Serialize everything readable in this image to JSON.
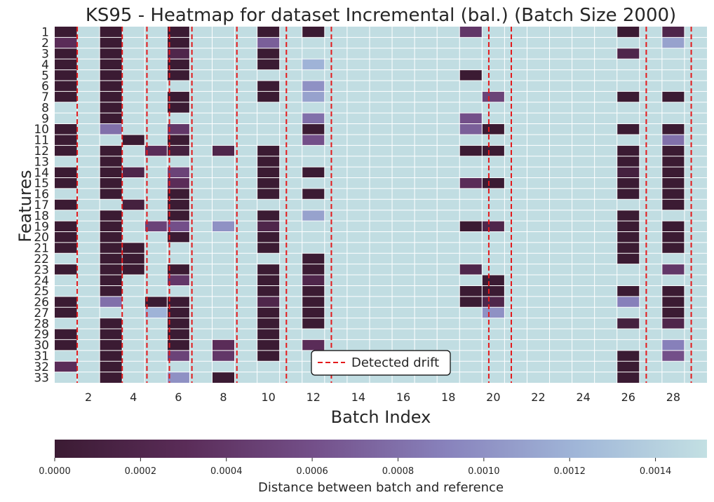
{
  "chart_data": {
    "type": "heatmap",
    "title": "KS95 - Heatmap for dataset Incremental (bal.) (Batch Size 2000)",
    "xlabel": "Batch Index",
    "ylabel": "Features",
    "x_ticks": [
      "2",
      "4",
      "6",
      "8",
      "10",
      "12",
      "14",
      "16",
      "18",
      "20",
      "22",
      "24",
      "26",
      "28"
    ],
    "y_categories": [
      "1",
      "2",
      "3",
      "4",
      "5",
      "6",
      "7",
      "8",
      "9",
      "10",
      "11",
      "12",
      "13",
      "14",
      "15",
      "16",
      "17",
      "18",
      "19",
      "20",
      "21",
      "22",
      "23",
      "24",
      "25",
      "26",
      "27",
      "28",
      "29",
      "30",
      "31",
      "32",
      "33"
    ],
    "batches": [
      1,
      2,
      3,
      4,
      5,
      6,
      7,
      8,
      9,
      10,
      11,
      12,
      13,
      14,
      15,
      16,
      17,
      18,
      19,
      20,
      21,
      22,
      23,
      24,
      25,
      26,
      27,
      28,
      29
    ],
    "colorbar": {
      "label": "Distance between batch and reference",
      "min": 0.0,
      "max": 0.00152,
      "ticks": [
        "0.0000",
        "0.0002",
        "0.0004",
        "0.0006",
        "0.0008",
        "0.0010",
        "0.0012",
        "0.0014"
      ],
      "colors": [
        "#3b1b33",
        "#5a2c58",
        "#74508a",
        "#8882bc",
        "#a0b6d8",
        "#c3e0e3"
      ]
    },
    "legend": {
      "label": "Detected drift",
      "placement": "lower-center",
      "line_color": "#e41a1c"
    },
    "drift_positions": [
      1.5,
      3.5,
      4.6,
      5.6,
      6.6,
      8.6,
      10.8,
      12.8,
      19.8,
      20.8,
      26.8,
      28.8
    ],
    "default_value": 0.0015,
    "values": [
      {
        "f": 1,
        "b": 1,
        "v": 0
      },
      {
        "f": 1,
        "b": 3,
        "v": 0
      },
      {
        "f": 1,
        "b": 6,
        "v": 0
      },
      {
        "f": 1,
        "b": 10,
        "v": 0
      },
      {
        "f": 1,
        "b": 12,
        "v": 0
      },
      {
        "f": 1,
        "b": 19,
        "v": 0.0004
      },
      {
        "f": 1,
        "b": 26,
        "v": 0
      },
      {
        "f": 1,
        "b": 28,
        "v": 0.0002
      },
      {
        "f": 2,
        "b": 1,
        "v": 0.0003
      },
      {
        "f": 2,
        "b": 3,
        "v": 0
      },
      {
        "f": 2,
        "b": 6,
        "v": 0
      },
      {
        "f": 2,
        "b": 10,
        "v": 0.0007
      },
      {
        "f": 2,
        "b": 28,
        "v": 0.0011
      },
      {
        "f": 3,
        "b": 1,
        "v": 0
      },
      {
        "f": 3,
        "b": 3,
        "v": 0
      },
      {
        "f": 3,
        "b": 6,
        "v": 0.0002
      },
      {
        "f": 3,
        "b": 10,
        "v": 0
      },
      {
        "f": 3,
        "b": 26,
        "v": 0.0002
      },
      {
        "f": 4,
        "b": 1,
        "v": 0
      },
      {
        "f": 4,
        "b": 3,
        "v": 0
      },
      {
        "f": 4,
        "b": 6,
        "v": 0
      },
      {
        "f": 4,
        "b": 10,
        "v": 0
      },
      {
        "f": 4,
        "b": 12,
        "v": 0.0012
      },
      {
        "f": 5,
        "b": 1,
        "v": 0
      },
      {
        "f": 5,
        "b": 3,
        "v": 0
      },
      {
        "f": 5,
        "b": 6,
        "v": 0
      },
      {
        "f": 5,
        "b": 19,
        "v": 0
      },
      {
        "f": 6,
        "b": 1,
        "v": 0
      },
      {
        "f": 6,
        "b": 3,
        "v": 0
      },
      {
        "f": 6,
        "b": 10,
        "v": 0
      },
      {
        "f": 6,
        "b": 12,
        "v": 0.001
      },
      {
        "f": 7,
        "b": 1,
        "v": 0
      },
      {
        "f": 7,
        "b": 3,
        "v": 0
      },
      {
        "f": 7,
        "b": 6,
        "v": 0
      },
      {
        "f": 7,
        "b": 10,
        "v": 0
      },
      {
        "f": 7,
        "b": 12,
        "v": 0.0011
      },
      {
        "f": 7,
        "b": 20,
        "v": 0.0005
      },
      {
        "f": 7,
        "b": 26,
        "v": 0
      },
      {
        "f": 7,
        "b": 28,
        "v": 0
      },
      {
        "f": 8,
        "b": 3,
        "v": 0
      },
      {
        "f": 8,
        "b": 6,
        "v": 0
      },
      {
        "f": 9,
        "b": 3,
        "v": 0
      },
      {
        "f": 9,
        "b": 12,
        "v": 0.0008
      },
      {
        "f": 9,
        "b": 19,
        "v": 0.0006
      },
      {
        "f": 10,
        "b": 1,
        "v": 0
      },
      {
        "f": 10,
        "b": 3,
        "v": 0.0008
      },
      {
        "f": 10,
        "b": 6,
        "v": 0.0004
      },
      {
        "f": 10,
        "b": 12,
        "v": 0
      },
      {
        "f": 10,
        "b": 19,
        "v": 0.0007
      },
      {
        "f": 10,
        "b": 20,
        "v": 0
      },
      {
        "f": 10,
        "b": 26,
        "v": 0
      },
      {
        "f": 10,
        "b": 28,
        "v": 0
      },
      {
        "f": 11,
        "b": 1,
        "v": 0
      },
      {
        "f": 11,
        "b": 4,
        "v": 0
      },
      {
        "f": 11,
        "b": 6,
        "v": 0
      },
      {
        "f": 11,
        "b": 12,
        "v": 0.0006
      },
      {
        "f": 11,
        "b": 28,
        "v": 0.0008
      },
      {
        "f": 12,
        "b": 1,
        "v": 0
      },
      {
        "f": 12,
        "b": 3,
        "v": 0
      },
      {
        "f": 12,
        "b": 5,
        "v": 0.0003
      },
      {
        "f": 12,
        "b": 6,
        "v": 0.0001
      },
      {
        "f": 12,
        "b": 8,
        "v": 0.0002
      },
      {
        "f": 12,
        "b": 10,
        "v": 0
      },
      {
        "f": 12,
        "b": 19,
        "v": 0
      },
      {
        "f": 12,
        "b": 20,
        "v": 0
      },
      {
        "f": 12,
        "b": 26,
        "v": 0
      },
      {
        "f": 12,
        "b": 28,
        "v": 0
      },
      {
        "f": 13,
        "b": 3,
        "v": 0
      },
      {
        "f": 13,
        "b": 10,
        "v": 0
      },
      {
        "f": 13,
        "b": 26,
        "v": 0
      },
      {
        "f": 13,
        "b": 28,
        "v": 0
      },
      {
        "f": 14,
        "b": 1,
        "v": 0
      },
      {
        "f": 14,
        "b": 3,
        "v": 0
      },
      {
        "f": 14,
        "b": 4,
        "v": 0.0002
      },
      {
        "f": 14,
        "b": 6,
        "v": 0.0005
      },
      {
        "f": 14,
        "b": 10,
        "v": 0
      },
      {
        "f": 14,
        "b": 12,
        "v": 0
      },
      {
        "f": 14,
        "b": 26,
        "v": 0.0001
      },
      {
        "f": 14,
        "b": 28,
        "v": 0
      },
      {
        "f": 15,
        "b": 1,
        "v": 0
      },
      {
        "f": 15,
        "b": 3,
        "v": 0
      },
      {
        "f": 15,
        "b": 6,
        "v": 0.0003
      },
      {
        "f": 15,
        "b": 10,
        "v": 0
      },
      {
        "f": 15,
        "b": 19,
        "v": 0.0003
      },
      {
        "f": 15,
        "b": 20,
        "v": 0
      },
      {
        "f": 15,
        "b": 26,
        "v": 0
      },
      {
        "f": 15,
        "b": 28,
        "v": 0
      },
      {
        "f": 16,
        "b": 3,
        "v": 0
      },
      {
        "f": 16,
        "b": 6,
        "v": 0
      },
      {
        "f": 16,
        "b": 10,
        "v": 0
      },
      {
        "f": 16,
        "b": 12,
        "v": 0
      },
      {
        "f": 16,
        "b": 26,
        "v": 0
      },
      {
        "f": 16,
        "b": 28,
        "v": 0
      },
      {
        "f": 17,
        "b": 1,
        "v": 0
      },
      {
        "f": 17,
        "b": 4,
        "v": 0.0001
      },
      {
        "f": 17,
        "b": 6,
        "v": 0
      },
      {
        "f": 17,
        "b": 28,
        "v": 0
      },
      {
        "f": 18,
        "b": 3,
        "v": 0
      },
      {
        "f": 18,
        "b": 6,
        "v": 0
      },
      {
        "f": 18,
        "b": 10,
        "v": 0
      },
      {
        "f": 18,
        "b": 12,
        "v": 0.0011
      },
      {
        "f": 18,
        "b": 26,
        "v": 0
      },
      {
        "f": 19,
        "b": 1,
        "v": 0
      },
      {
        "f": 19,
        "b": 3,
        "v": 0
      },
      {
        "f": 19,
        "b": 5,
        "v": 0.0005
      },
      {
        "f": 19,
        "b": 6,
        "v": 0.0006
      },
      {
        "f": 19,
        "b": 8,
        "v": 0.001
      },
      {
        "f": 19,
        "b": 10,
        "v": 0.0002
      },
      {
        "f": 19,
        "b": 19,
        "v": 0
      },
      {
        "f": 19,
        "b": 20,
        "v": 0.0002
      },
      {
        "f": 19,
        "b": 26,
        "v": 0
      },
      {
        "f": 19,
        "b": 28,
        "v": 0
      },
      {
        "f": 20,
        "b": 1,
        "v": 0
      },
      {
        "f": 20,
        "b": 3,
        "v": 0
      },
      {
        "f": 20,
        "b": 6,
        "v": 0
      },
      {
        "f": 20,
        "b": 10,
        "v": 0
      },
      {
        "f": 20,
        "b": 26,
        "v": 0
      },
      {
        "f": 20,
        "b": 28,
        "v": 0
      },
      {
        "f": 21,
        "b": 1,
        "v": 0
      },
      {
        "f": 21,
        "b": 3,
        "v": 0
      },
      {
        "f": 21,
        "b": 4,
        "v": 0
      },
      {
        "f": 21,
        "b": 10,
        "v": 0
      },
      {
        "f": 21,
        "b": 26,
        "v": 0
      },
      {
        "f": 21,
        "b": 28,
        "v": 0
      },
      {
        "f": 22,
        "b": 3,
        "v": 0
      },
      {
        "f": 22,
        "b": 4,
        "v": 0
      },
      {
        "f": 22,
        "b": 12,
        "v": 0
      },
      {
        "f": 22,
        "b": 26,
        "v": 0
      },
      {
        "f": 23,
        "b": 1,
        "v": 0
      },
      {
        "f": 23,
        "b": 3,
        "v": 0
      },
      {
        "f": 23,
        "b": 4,
        "v": 0
      },
      {
        "f": 23,
        "b": 6,
        "v": 0
      },
      {
        "f": 23,
        "b": 10,
        "v": 0
      },
      {
        "f": 23,
        "b": 12,
        "v": 0
      },
      {
        "f": 23,
        "b": 19,
        "v": 0.0002
      },
      {
        "f": 23,
        "b": 28,
        "v": 0.0004
      },
      {
        "f": 24,
        "b": 3,
        "v": 0
      },
      {
        "f": 24,
        "b": 6,
        "v": 0.0004
      },
      {
        "f": 24,
        "b": 10,
        "v": 0
      },
      {
        "f": 24,
        "b": 12,
        "v": 0.0002
      },
      {
        "f": 24,
        "b": 20,
        "v": 0
      },
      {
        "f": 25,
        "b": 3,
        "v": 0
      },
      {
        "f": 25,
        "b": 10,
        "v": 0
      },
      {
        "f": 25,
        "b": 12,
        "v": 0
      },
      {
        "f": 25,
        "b": 19,
        "v": 0
      },
      {
        "f": 25,
        "b": 20,
        "v": 0
      },
      {
        "f": 25,
        "b": 26,
        "v": 0
      },
      {
        "f": 25,
        "b": 28,
        "v": 0
      },
      {
        "f": 26,
        "b": 1,
        "v": 0
      },
      {
        "f": 26,
        "b": 3,
        "v": 0.0008
      },
      {
        "f": 26,
        "b": 5,
        "v": 0
      },
      {
        "f": 26,
        "b": 6,
        "v": 0
      },
      {
        "f": 26,
        "b": 10,
        "v": 0.0002
      },
      {
        "f": 26,
        "b": 12,
        "v": 0
      },
      {
        "f": 26,
        "b": 19,
        "v": 0
      },
      {
        "f": 26,
        "b": 20,
        "v": 0.0002
      },
      {
        "f": 26,
        "b": 26,
        "v": 0.0009
      },
      {
        "f": 26,
        "b": 28,
        "v": 0
      },
      {
        "f": 27,
        "b": 1,
        "v": 0
      },
      {
        "f": 27,
        "b": 5,
        "v": 0.0012
      },
      {
        "f": 27,
        "b": 6,
        "v": 0
      },
      {
        "f": 27,
        "b": 10,
        "v": 0
      },
      {
        "f": 27,
        "b": 12,
        "v": 0
      },
      {
        "f": 27,
        "b": 20,
        "v": 0.001
      },
      {
        "f": 27,
        "b": 28,
        "v": 0
      },
      {
        "f": 28,
        "b": 3,
        "v": 0
      },
      {
        "f": 28,
        "b": 6,
        "v": 0
      },
      {
        "f": 28,
        "b": 10,
        "v": 0
      },
      {
        "f": 28,
        "b": 12,
        "v": 0
      },
      {
        "f": 28,
        "b": 26,
        "v": 0.0001
      },
      {
        "f": 28,
        "b": 28,
        "v": 0.0002
      },
      {
        "f": 29,
        "b": 1,
        "v": 0
      },
      {
        "f": 29,
        "b": 3,
        "v": 0
      },
      {
        "f": 29,
        "b": 6,
        "v": 0
      },
      {
        "f": 29,
        "b": 10,
        "v": 0
      },
      {
        "f": 30,
        "b": 1,
        "v": 0
      },
      {
        "f": 30,
        "b": 3,
        "v": 0
      },
      {
        "f": 30,
        "b": 6,
        "v": 0
      },
      {
        "f": 30,
        "b": 8,
        "v": 0.0003
      },
      {
        "f": 30,
        "b": 10,
        "v": 0
      },
      {
        "f": 30,
        "b": 12,
        "v": 0.0003
      },
      {
        "f": 30,
        "b": 28,
        "v": 0.0009
      },
      {
        "f": 31,
        "b": 3,
        "v": 0
      },
      {
        "f": 31,
        "b": 6,
        "v": 0.0005
      },
      {
        "f": 31,
        "b": 8,
        "v": 0.0004
      },
      {
        "f": 31,
        "b": 10,
        "v": 0
      },
      {
        "f": 31,
        "b": 26,
        "v": 0
      },
      {
        "f": 31,
        "b": 28,
        "v": 0.0006
      },
      {
        "f": 32,
        "b": 1,
        "v": 0.0003
      },
      {
        "f": 32,
        "b": 3,
        "v": 0
      },
      {
        "f": 32,
        "b": 26,
        "v": 0
      },
      {
        "f": 33,
        "b": 3,
        "v": 0
      },
      {
        "f": 33,
        "b": 6,
        "v": 0.001
      },
      {
        "f": 33,
        "b": 8,
        "v": 0
      },
      {
        "f": 33,
        "b": 26,
        "v": 0
      }
    ]
  }
}
